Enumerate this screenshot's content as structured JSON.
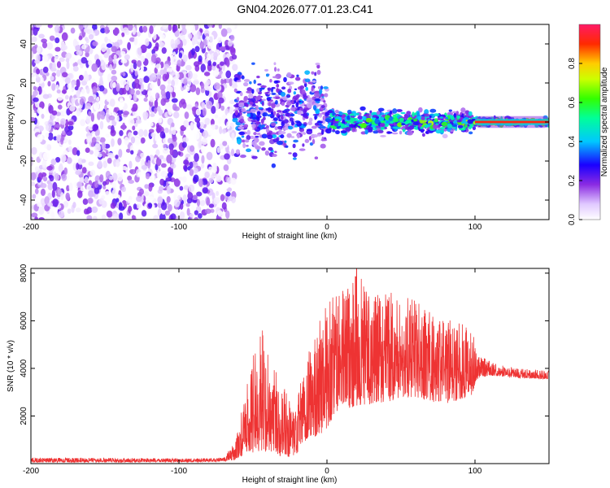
{
  "title": "GN04.2026.077.01.23.C41",
  "chart_data": [
    {
      "type": "heatmap",
      "name": "spectrogram",
      "xlabel": "Height of straight line (km)",
      "ylabel": "Frequency (Hz)",
      "xlim": [
        -200,
        150
      ],
      "ylim": [
        -50,
        50
      ],
      "xticks": [
        -200,
        -100,
        0,
        100
      ],
      "xtick_labels": [
        "-200",
        "-100",
        "0",
        "100"
      ],
      "yticks": [
        -40,
        -20,
        0,
        20,
        40
      ],
      "ytick_labels": [
        "-40",
        "-20",
        "0",
        "20",
        "40"
      ],
      "colorbar": {
        "label": "Normalized spectral amplitude",
        "range": [
          0,
          1
        ],
        "ticks": [
          0.0,
          0.2,
          0.4,
          0.6,
          0.8
        ],
        "tick_labels": [
          "0.0",
          "0.2",
          "0.4",
          "0.6",
          "0.8"
        ]
      },
      "regions": [
        {
          "x_range": [
            -200,
            -62
          ],
          "description_values": {
            "freq_range": [
              -50,
              50
            ],
            "amplitude_range": [
              0.0,
              0.25
            ]
          }
        },
        {
          "x_range": [
            -62,
            0
          ],
          "description_values": {
            "freq_range": [
              -25,
              35
            ],
            "amplitude_range": [
              0.1,
              0.4
            ]
          }
        },
        {
          "x_range": [
            0,
            100
          ],
          "description_values": {
            "freq_range": [
              -8,
              8
            ],
            "amplitude_range": [
              0.2,
              0.75
            ]
          }
        },
        {
          "x_range": [
            100,
            150
          ],
          "description_values": {
            "freq_range": [
              -3,
              3
            ],
            "amplitude_range": [
              0.4,
              1.0
            ]
          }
        }
      ]
    },
    {
      "type": "line",
      "name": "snr",
      "xlabel": "Height of straight line (km)",
      "ylabel": "SNR (10 * v/v)",
      "xlim": [
        -200,
        150
      ],
      "ylim": [
        0,
        8200
      ],
      "xticks": [
        -200,
        -100,
        0,
        100
      ],
      "xtick_labels": [
        "-200",
        "-100",
        "0",
        "100"
      ],
      "yticks": [
        2000,
        4000,
        6000,
        8000
      ],
      "ytick_labels": [
        "2000",
        "4000",
        "6000",
        "8000"
      ],
      "series": [
        {
          "name": "SNR",
          "color": "#ee3333",
          "envelope": {
            "x": [
              -200,
              -90,
              -70,
              -62,
              -55,
              -45,
              -38,
              -30,
              -22,
              -18,
              -12,
              -5,
              0,
              5,
              10,
              20,
              30,
              40,
              50,
              60,
              70,
              80,
              90,
              98,
              102,
              110,
              120,
              130,
              150
            ],
            "y_low": [
              50,
              60,
              80,
              150,
              400,
              500,
              400,
              300,
              200,
              600,
              1000,
              1200,
              1500,
              2000,
              2300,
              2400,
              2500,
              2600,
              2700,
              2800,
              2600,
              2500,
              2700,
              2800,
              3600,
              3700,
              3650,
              3600,
              3550
            ],
            "y_high": [
              250,
              220,
              250,
              900,
              3000,
              6000,
              4500,
              3500,
              2000,
              3500,
              5000,
              6000,
              7000,
              7200,
              7300,
              8200,
              7000,
              7300,
              7000,
              6900,
              6500,
              6000,
              6100,
              5800,
              4600,
              4300,
              4100,
              4000,
              3900
            ]
          },
          "peak": {
            "x": 20,
            "y": 8200
          }
        }
      ]
    }
  ]
}
